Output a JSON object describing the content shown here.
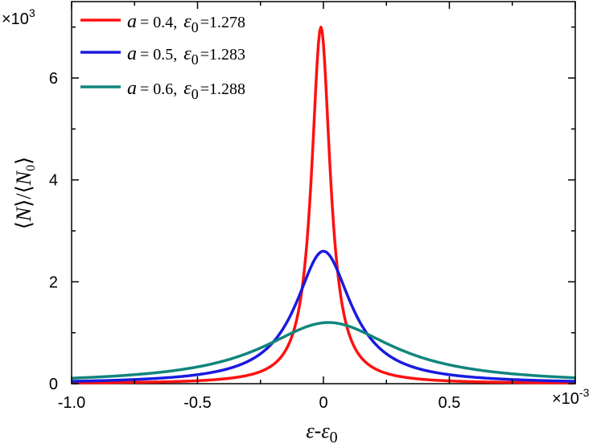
{
  "chart_data": {
    "type": "line",
    "title": "",
    "xlabel": "ε-ε0",
    "ylabel": "⟨N⟩/⟨N0⟩",
    "x_multiplier": "×10",
    "x_multiplier_exp": "-3",
    "y_multiplier": "×10",
    "y_multiplier_exp": "3",
    "xlim": [
      -1.0,
      1.0
    ],
    "ylim": [
      0,
      7.5
    ],
    "x_ticks": [
      -1.0,
      -0.5,
      0,
      0.5
    ],
    "x_tick_labels": [
      "-1.0",
      "-0.5",
      "0",
      "0.5"
    ],
    "y_ticks": [
      0,
      2,
      4,
      6
    ],
    "y_tick_labels": [
      "0",
      "2",
      "4",
      "6"
    ],
    "grid": false,
    "legend_position": "top-left",
    "series": [
      {
        "name": "a = 0.4, ε0 =1.278",
        "legend": {
          "var": "a",
          "eq": "= 0.4,",
          "eps": "ε",
          "sub": "0",
          "val": "=1.278"
        },
        "color": "#ff1010",
        "x0": -0.01,
        "peak": 7.0,
        "hwhm": 0.045
      },
      {
        "name": "a = 0.5, ε0 =1.283",
        "legend": {
          "var": "a",
          "eq": "= 0.5,",
          "eps": "ε",
          "sub": "0",
          "val": "=1.283"
        },
        "color": "#1a1ae0",
        "x0": 0.0,
        "peak": 2.6,
        "hwhm": 0.135
      },
      {
        "name": "a = 0.6, ε0 =1.288",
        "legend": {
          "var": "a",
          "eq": "= 0.6,",
          "eps": "ε",
          "sub": "0",
          "val": "=1.288"
        },
        "color": "#11857c",
        "x0": 0.02,
        "peak": 1.2,
        "hwhm": 0.32
      }
    ]
  }
}
